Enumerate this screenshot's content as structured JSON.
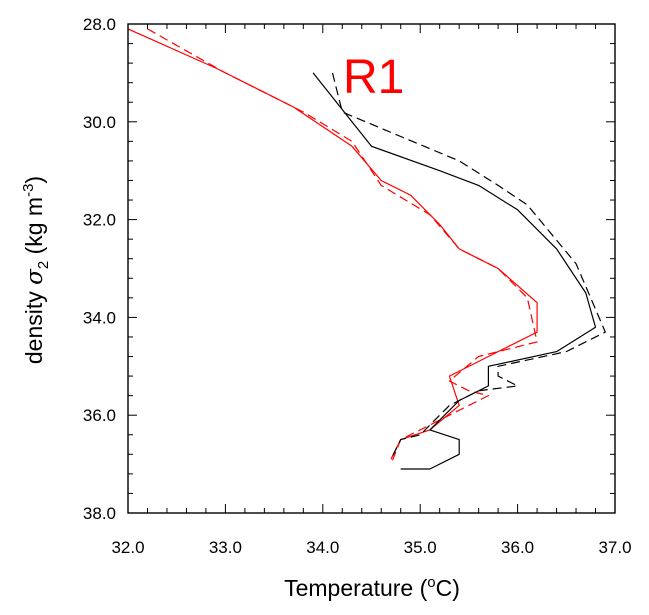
{
  "chart_data": {
    "type": "line",
    "panel_label": "R1",
    "panel_label_color": "#ff0000",
    "xlabel": "Temperature (°C)",
    "xlabel_text": "Temperature (",
    "xlabel_sup": "o",
    "xlabel_unit": "C)",
    "ylabel_text": "density ",
    "ylabel_symbol": "σ",
    "ylabel_sub": "2",
    "ylabel_units": " (kg m",
    "ylabel_sup": "-3",
    "ylabel_close": ")",
    "xlim": [
      32.0,
      37.0
    ],
    "ylim": [
      28.0,
      38.0
    ],
    "y_inverted": true,
    "grid": false,
    "x_ticks": [
      "32.0",
      "33.0",
      "34.0",
      "35.0",
      "36.0",
      "37.0"
    ],
    "x_tick_values": [
      32.0,
      33.0,
      34.0,
      35.0,
      36.0,
      37.0
    ],
    "y_ticks": [
      "28.0",
      "30.0",
      "32.0",
      "34.0",
      "36.0",
      "38.0"
    ],
    "y_tick_values": [
      28.0,
      30.0,
      32.0,
      34.0,
      36.0,
      38.0
    ],
    "series": [
      {
        "color": "#ff0000",
        "dash": "solid",
        "points": [
          [
            32.0,
            28.1
          ],
          [
            32.9,
            28.9
          ],
          [
            33.7,
            29.7
          ],
          [
            34.3,
            30.5
          ],
          [
            34.6,
            31.2
          ],
          [
            34.9,
            31.5
          ],
          [
            35.2,
            32.1
          ],
          [
            35.4,
            32.6
          ],
          [
            35.8,
            33.0
          ],
          [
            36.2,
            33.7
          ],
          [
            36.2,
            34.3
          ],
          [
            35.7,
            34.8
          ],
          [
            35.3,
            35.2
          ],
          [
            35.4,
            35.8
          ],
          [
            35.1,
            36.3
          ],
          [
            34.8,
            36.5
          ],
          [
            34.7,
            36.9
          ]
        ]
      },
      {
        "color": "#ff0000",
        "dash": "dashed",
        "points": [
          [
            32.2,
            28.1
          ],
          [
            33.0,
            29.0
          ],
          [
            33.8,
            29.8
          ],
          [
            34.3,
            30.4
          ],
          [
            34.6,
            31.3
          ],
          [
            35.1,
            31.9
          ],
          [
            35.4,
            32.6
          ],
          [
            35.8,
            33.0
          ],
          [
            36.1,
            33.6
          ],
          [
            36.2,
            34.5
          ],
          [
            35.6,
            34.8
          ],
          [
            35.3,
            35.3
          ],
          [
            35.5,
            35.5
          ],
          [
            35.7,
            35.6
          ],
          [
            35.1,
            36.2
          ],
          [
            34.8,
            36.5
          ],
          [
            34.7,
            37.0
          ]
        ]
      },
      {
        "color": "#000000",
        "dash": "solid",
        "points": [
          [
            33.9,
            29.0
          ],
          [
            34.5,
            30.5
          ],
          [
            35.2,
            31.0
          ],
          [
            35.6,
            31.3
          ],
          [
            36.0,
            31.8
          ],
          [
            36.4,
            32.6
          ],
          [
            36.7,
            33.5
          ],
          [
            36.8,
            34.2
          ],
          [
            36.4,
            34.7
          ],
          [
            35.7,
            35.0
          ],
          [
            35.7,
            35.4
          ],
          [
            35.4,
            35.7
          ],
          [
            35.1,
            36.3
          ],
          [
            35.4,
            36.5
          ],
          [
            35.4,
            36.8
          ],
          [
            35.1,
            37.1
          ],
          [
            34.8,
            37.1
          ]
        ]
      },
      {
        "color": "#000000",
        "dash": "dashed",
        "points": [
          [
            34.1,
            29.0
          ],
          [
            34.2,
            29.8
          ],
          [
            34.8,
            30.3
          ],
          [
            35.4,
            30.8
          ],
          [
            35.8,
            31.3
          ],
          [
            36.1,
            31.7
          ],
          [
            36.6,
            32.9
          ],
          [
            36.9,
            34.3
          ],
          [
            36.5,
            34.7
          ],
          [
            35.8,
            35.0
          ],
          [
            35.8,
            35.2
          ],
          [
            36.0,
            35.4
          ],
          [
            35.6,
            35.5
          ],
          [
            35.3,
            35.8
          ],
          [
            35.0,
            36.4
          ],
          [
            34.8,
            36.5
          ],
          [
            34.7,
            36.9
          ]
        ]
      }
    ]
  }
}
